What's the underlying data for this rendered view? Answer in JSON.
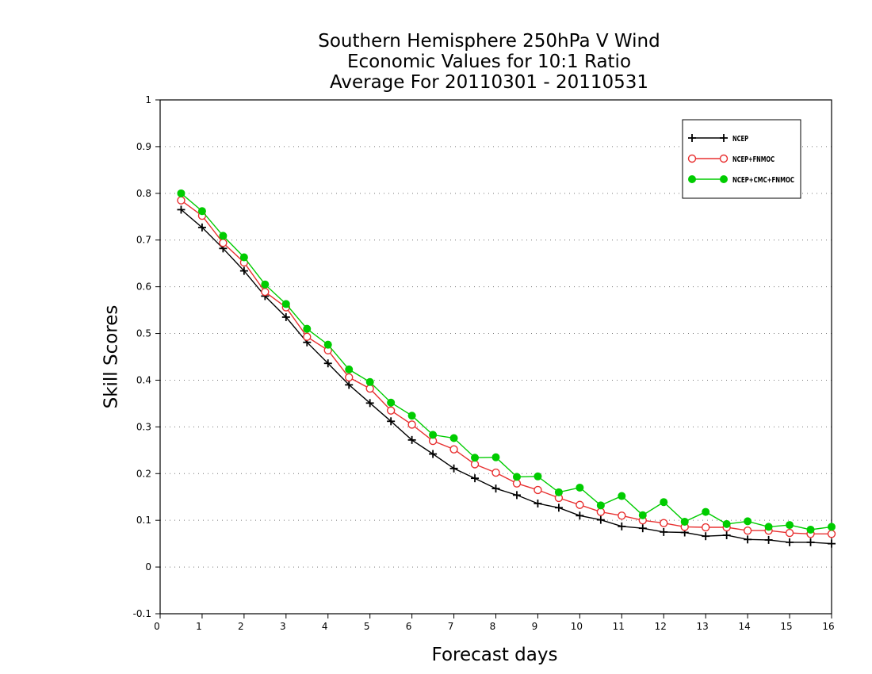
{
  "chart_data": {
    "type": "line",
    "title": [
      "Southern Hemisphere 250hPa V Wind",
      "Economic Values for 10:1 Ratio",
      "Average For 20110301 - 20110531"
    ],
    "xlabel": "Forecast days",
    "ylabel": "Skill Scores",
    "xlim": [
      0,
      16
    ],
    "ylim": [
      -0.1,
      1
    ],
    "xticks": [
      "0",
      "1",
      "2",
      "3",
      "4",
      "5",
      "6",
      "7",
      "8",
      "9",
      "10",
      "11",
      "12",
      "13",
      "14",
      "15",
      "16"
    ],
    "yticks": [
      "-0.1",
      "0",
      "0.1",
      "0.2",
      "0.3",
      "0.4",
      "0.5",
      "0.6",
      "0.7",
      "0.8",
      "0.9",
      "1"
    ],
    "grid": "horizontal dotted",
    "legend_position": "top-right",
    "x": [
      0.5,
      1,
      1.5,
      2,
      2.5,
      3,
      3.5,
      4,
      4.5,
      5,
      5.5,
      6,
      6.5,
      7,
      7.5,
      8,
      8.5,
      9,
      9.5,
      10,
      10.5,
      11,
      11.5,
      12,
      12.5,
      13,
      13.5,
      14,
      14.5,
      15,
      15.5,
      16
    ],
    "series": [
      {
        "name": "NCEP",
        "color": "#000000",
        "marker": "plus",
        "values": [
          0.765,
          0.727,
          0.682,
          0.634,
          0.58,
          0.535,
          0.481,
          0.436,
          0.39,
          0.351,
          0.312,
          0.272,
          0.242,
          0.211,
          0.19,
          0.168,
          0.154,
          0.136,
          0.127,
          0.11,
          0.101,
          0.087,
          0.083,
          0.075,
          0.074,
          0.066,
          0.068,
          0.059,
          0.058,
          0.053,
          0.053,
          0.05
        ]
      },
      {
        "name": "NCEP+FNMOC",
        "color": "#e83030",
        "marker": "open-circle",
        "values": [
          0.785,
          0.752,
          0.694,
          0.652,
          0.589,
          0.556,
          0.493,
          0.464,
          0.406,
          0.382,
          0.335,
          0.305,
          0.27,
          0.252,
          0.22,
          0.202,
          0.179,
          0.165,
          0.148,
          0.133,
          0.118,
          0.11,
          0.1,
          0.094,
          0.086,
          0.085,
          0.085,
          0.078,
          0.078,
          0.073,
          0.071,
          0.071
        ]
      },
      {
        "name": "NCEP+CMC+FNMOC",
        "color": "#00cc00",
        "marker": "filled-circle",
        "values": [
          0.8,
          0.762,
          0.709,
          0.663,
          0.605,
          0.563,
          0.51,
          0.476,
          0.423,
          0.396,
          0.352,
          0.324,
          0.283,
          0.276,
          0.234,
          0.235,
          0.193,
          0.194,
          0.16,
          0.17,
          0.132,
          0.152,
          0.111,
          0.139,
          0.097,
          0.118,
          0.092,
          0.098,
          0.086,
          0.09,
          0.08,
          0.086
        ]
      }
    ]
  }
}
